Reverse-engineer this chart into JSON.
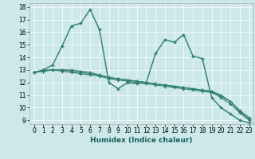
{
  "xlabel": "Humidex (Indice chaleur)",
  "x_ticks": [
    0,
    1,
    2,
    3,
    4,
    5,
    6,
    7,
    8,
    9,
    10,
    11,
    12,
    13,
    14,
    15,
    16,
    17,
    18,
    19,
    20,
    21,
    22,
    23
  ],
  "y_ticks": [
    9,
    10,
    11,
    12,
    13,
    14,
    15,
    16,
    17,
    18
  ],
  "xlim": [
    -0.5,
    23.5
  ],
  "ylim": [
    8.7,
    18.3
  ],
  "background_color": "#cce8e8",
  "line_color": "#2e7d6e",
  "grid_color": "#ffffff",
  "series": [
    [
      12.8,
      13.0,
      13.4,
      14.9,
      16.5,
      16.7,
      17.8,
      16.2,
      12.0,
      11.5,
      12.0,
      11.9,
      12.0,
      14.3,
      15.4,
      15.2,
      15.8,
      14.1,
      13.9,
      10.8,
      10.0,
      9.5,
      9.0,
      8.8
    ],
    [
      12.8,
      13.0,
      13.0,
      13.0,
      13.0,
      12.9,
      12.8,
      12.6,
      12.4,
      12.3,
      12.2,
      12.1,
      12.0,
      11.9,
      11.8,
      11.7,
      11.6,
      11.5,
      11.4,
      11.3,
      11.0,
      10.5,
      9.8,
      9.2
    ],
    [
      12.8,
      12.9,
      13.0,
      13.0,
      12.9,
      12.8,
      12.7,
      12.6,
      12.4,
      12.3,
      12.2,
      12.1,
      12.0,
      11.9,
      11.8,
      11.7,
      11.6,
      11.5,
      11.4,
      11.3,
      10.9,
      10.5,
      9.7,
      9.1
    ],
    [
      12.8,
      12.9,
      13.0,
      12.9,
      12.8,
      12.7,
      12.6,
      12.5,
      12.3,
      12.2,
      12.1,
      12.0,
      11.9,
      11.8,
      11.7,
      11.6,
      11.5,
      11.4,
      11.3,
      11.2,
      10.8,
      10.3,
      9.6,
      9.0
    ]
  ],
  "xlabel_fontsize": 6.5,
  "tick_fontsize": 5.5
}
